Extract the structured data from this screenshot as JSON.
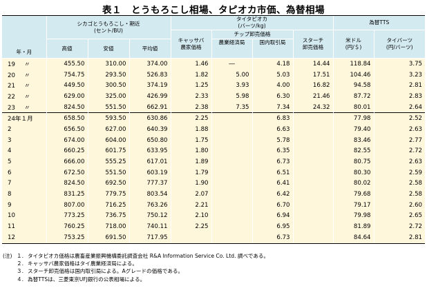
{
  "title": "表１　とうもろこし相場、タピオカ市価、為替相場",
  "header": {
    "year_month": "年・月",
    "corn_group": "シカゴとうもろこし・期近",
    "corn_unit": "(セント/BU)",
    "corn_high": "高値",
    "corn_low": "安値",
    "corn_avg": "平均値",
    "tapioca_group": "タイタピオカ",
    "tapioca_unit": "(バーツ/kg)",
    "cassava_line1": "キャッサバ",
    "cassava_line2": "農家価格",
    "chip_group": "チップ卸売価格",
    "chip_agri": "農業経済局",
    "chip_domestic": "国内取引局",
    "starch_line1": "スターチ",
    "starch_line2": "卸売価格",
    "fx_group": "為替TTS",
    "usd_line1": "米ドル",
    "usd_line2": "(円/＄)",
    "baht_line1": "タイバーツ",
    "baht_line2": "(円/バーツ)"
  },
  "rows": [
    {
      "label": "19",
      "mark": "〃",
      "high": "455.50",
      "low": "310.00",
      "avg": "374.00",
      "cassava": "1.46",
      "chip_agri": "―",
      "chip_dom": "4.18",
      "starch": "14.44",
      "usd": "118.84",
      "baht": "3.75"
    },
    {
      "label": "20",
      "mark": "〃",
      "high": "754.75",
      "low": "293.50",
      "avg": "526.83",
      "cassava": "1.82",
      "chip_agri": "5.00",
      "chip_dom": "5.03",
      "starch": "17.51",
      "usd": "104.46",
      "baht": "3.23"
    },
    {
      "label": "21",
      "mark": "〃",
      "high": "449.50",
      "low": "300.50",
      "avg": "374.19",
      "cassava": "1.25",
      "chip_agri": "3.93",
      "chip_dom": "4.00",
      "starch": "16.82",
      "usd": "94.58",
      "baht": "2.81"
    },
    {
      "label": "22",
      "mark": "〃",
      "high": "629.00",
      "low": "325.00",
      "avg": "426.99",
      "cassava": "2.33",
      "chip_agri": "5.98",
      "chip_dom": "6.30",
      "starch": "21.46",
      "usd": "87.72",
      "baht": "2.83"
    },
    {
      "label": "23",
      "mark": "〃",
      "high": "824.50",
      "low": "551.50",
      "avg": "662.91",
      "cassava": "2.38",
      "chip_agri": "7.35",
      "chip_dom": "7.34",
      "starch": "24.32",
      "usd": "80.01",
      "baht": "2.64"
    },
    {
      "label": "24年１月",
      "mark": "",
      "high": "658.50",
      "low": "593.50",
      "avg": "630.86",
      "cassava": "2.25",
      "chip_agri": "",
      "chip_dom": "6.83",
      "starch": "",
      "usd": "77.98",
      "baht": "2.52"
    },
    {
      "label": "2",
      "mark": "",
      "high": "656.50",
      "low": "627.00",
      "avg": "640.39",
      "cassava": "1.88",
      "chip_agri": "",
      "chip_dom": "6.63",
      "starch": "",
      "usd": "79.40",
      "baht": "2.63"
    },
    {
      "label": "3",
      "mark": "",
      "high": "674.00",
      "low": "604.00",
      "avg": "650.80",
      "cassava": "1.75",
      "chip_agri": "",
      "chip_dom": "5.78",
      "starch": "",
      "usd": "83.46",
      "baht": "2.77"
    },
    {
      "label": "4",
      "mark": "",
      "high": "660.25",
      "low": "601.75",
      "avg": "633.95",
      "cassava": "1.80",
      "chip_agri": "",
      "chip_dom": "6.35",
      "starch": "",
      "usd": "82.55",
      "baht": "2.72"
    },
    {
      "label": "5",
      "mark": "",
      "high": "666.00",
      "low": "555.25",
      "avg": "617.01",
      "cassava": "1.89",
      "chip_agri": "",
      "chip_dom": "6.73",
      "starch": "",
      "usd": "80.75",
      "baht": "2.63"
    },
    {
      "label": "6",
      "mark": "",
      "high": "672.50",
      "low": "551.50",
      "avg": "603.19",
      "cassava": "1.79",
      "chip_agri": "",
      "chip_dom": "6.51",
      "starch": "",
      "usd": "80.30",
      "baht": "2.59"
    },
    {
      "label": "7",
      "mark": "",
      "high": "824.50",
      "low": "692.50",
      "avg": "777.37",
      "cassava": "1.90",
      "chip_agri": "",
      "chip_dom": "6.41",
      "starch": "",
      "usd": "80.02",
      "baht": "2.58"
    },
    {
      "label": "8",
      "mark": "",
      "high": "831.25",
      "low": "779.75",
      "avg": "803.54",
      "cassava": "2.07",
      "chip_agri": "",
      "chip_dom": "6.42",
      "starch": "",
      "usd": "79.68",
      "baht": "2.58"
    },
    {
      "label": "9",
      "mark": "",
      "high": "807.00",
      "low": "716.25",
      "avg": "763.26",
      "cassava": "2.21",
      "chip_agri": "",
      "chip_dom": "6.70",
      "starch": "",
      "usd": "79.17",
      "baht": "2.60"
    },
    {
      "label": "10",
      "mark": "",
      "high": "773.25",
      "low": "736.75",
      "avg": "750.12",
      "cassava": "2.10",
      "chip_agri": "",
      "chip_dom": "6.94",
      "starch": "",
      "usd": "79.98",
      "baht": "2.65"
    },
    {
      "label": "11",
      "mark": "",
      "high": "760.25",
      "low": "718.00",
      "avg": "740.11",
      "cassava": "2.25",
      "chip_agri": "",
      "chip_dom": "6.95",
      "starch": "",
      "usd": "81.89",
      "baht": "2.72"
    },
    {
      "label": "12",
      "mark": "",
      "high": "753.25",
      "low": "691.50",
      "avg": "717.95",
      "cassava": "",
      "chip_agri": "",
      "chip_dom": "6.73",
      "starch": "",
      "usd": "84.64",
      "baht": "2.81"
    }
  ],
  "notes": {
    "head": "(注)",
    "items": [
      {
        "num": "１.",
        "text": "タイタピオカ価格は農畜産業振興機構委託調査会社 R&A Information Service Co. Ltd. 調べである。"
      },
      {
        "num": "２.",
        "text": "キャッサバ農家価格はタイ農業経済局による。"
      },
      {
        "num": "３.",
        "text": "スターチ卸売価格は国内取引局による。Aグレードの価格である。"
      },
      {
        "num": "４.",
        "text": "為替TTSは、三菱東京UFJ銀行の公表相場による。"
      }
    ]
  }
}
